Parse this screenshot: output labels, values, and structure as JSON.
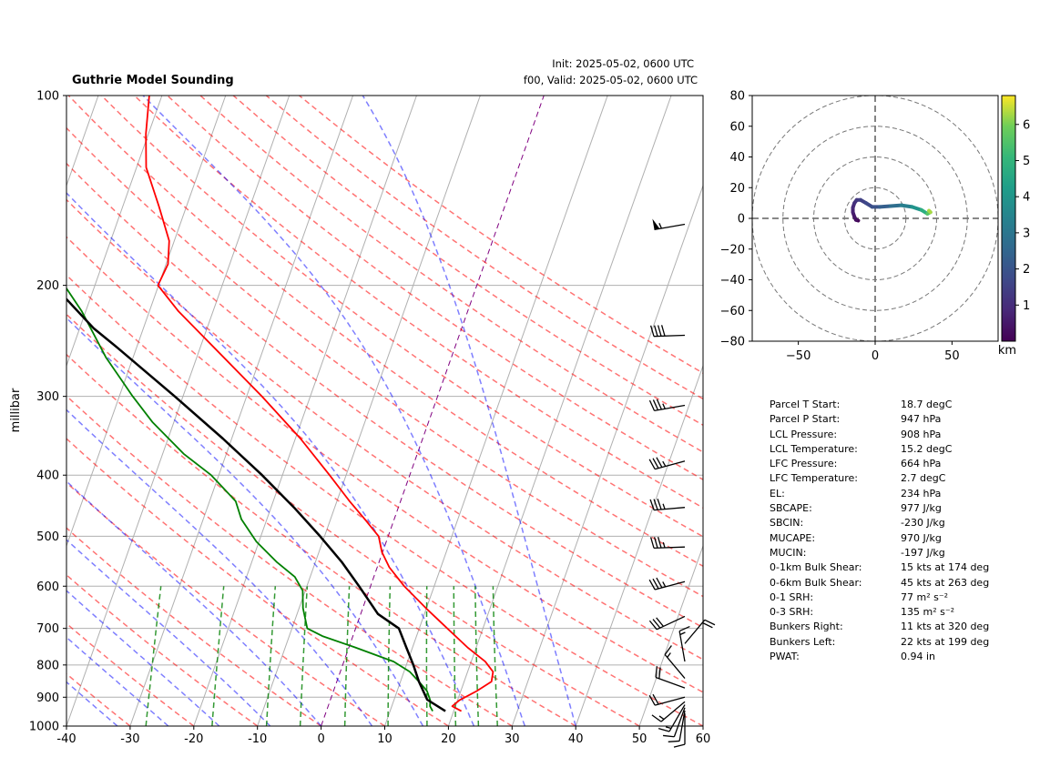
{
  "title": "Guthrie Model Sounding",
  "init_text": "Init: 2025-05-02, 0600 UTC",
  "valid_text": "f00, Valid: 2025-05-02, 0600 UTC",
  "colors": {
    "temperature": "#ff0000",
    "dewpoint": "#008000",
    "parcel": "#000000",
    "dry_adiabat": "#ff0000",
    "moist_adiabat": "#0000ff",
    "mixing_ratio": "#008000",
    "isobar": "#b0b0b0",
    "isotherm": "#b0b0b0",
    "zero_isotherm": "#800080"
  },
  "chart_data": [
    {
      "type": "line",
      "subtype": "skew-t log-p",
      "title": "Guthrie Model Sounding",
      "ylabel": "millibar",
      "xlabel": "",
      "x_ticks": [
        -40,
        -30,
        -20,
        -10,
        0,
        10,
        20,
        30,
        40,
        50,
        60
      ],
      "y_ticks": [
        100,
        200,
        300,
        400,
        500,
        600,
        700,
        800,
        900,
        1000
      ],
      "xlim": [
        -40,
        60
      ],
      "ylim": [
        1000,
        100
      ],
      "skew": 35,
      "grid": true,
      "series": [
        {
          "role": "temperature",
          "color": "#ff0000",
          "points": [
            [
              947,
              21.2
            ],
            [
              930,
              19.5
            ],
            [
              910,
              20.3
            ],
            [
              880,
              22.5
            ],
            [
              850,
              24.3
            ],
            [
              820,
              24.0
            ],
            [
              790,
              22.2
            ],
            [
              750,
              18.6
            ],
            [
              700,
              14.4
            ],
            [
              650,
              9.9
            ],
            [
              600,
              5.3
            ],
            [
              560,
              1.9
            ],
            [
              530,
              -0.1
            ],
            [
              500,
              -1.5
            ],
            [
              470,
              -4.6
            ],
            [
              440,
              -8.0
            ],
            [
              400,
              -12.6
            ],
            [
              350,
              -19.2
            ],
            [
              300,
              -27.6
            ],
            [
              260,
              -35.8
            ],
            [
              220,
              -45.4
            ],
            [
              200,
              -50.1
            ],
            [
              185,
              -49.7
            ],
            [
              170,
              -50.8
            ],
            [
              150,
              -54.3
            ],
            [
              130,
              -58.5
            ],
            [
              115,
              -60.4
            ],
            [
              100,
              -62.0
            ]
          ]
        },
        {
          "role": "dewpoint",
          "color": "#008000",
          "points": [
            [
              947,
              16.7
            ],
            [
              930,
              16.0
            ],
            [
              910,
              15.7
            ],
            [
              880,
              14.7
            ],
            [
              850,
              12.9
            ],
            [
              820,
              10.9
            ],
            [
              790,
              7.8
            ],
            [
              750,
              0.9
            ],
            [
              720,
              -4.8
            ],
            [
              700,
              -7.6
            ],
            [
              650,
              -9.4
            ],
            [
              610,
              -10.4
            ],
            [
              580,
              -12.4
            ],
            [
              550,
              -16.0
            ],
            [
              510,
              -20.4
            ],
            [
              470,
              -24.0
            ],
            [
              440,
              -25.9
            ],
            [
              400,
              -31.2
            ],
            [
              370,
              -36.7
            ],
            [
              330,
              -43.3
            ],
            [
              300,
              -47.9
            ],
            [
              260,
              -54.3
            ],
            [
              220,
              -60.6
            ],
            [
              200,
              -64.8
            ],
            [
              185,
              -66.0
            ],
            [
              170,
              -72.3
            ],
            [
              150,
              -82.0
            ],
            [
              140,
              -81.5
            ],
            [
              125,
              -80.5
            ],
            [
              110,
              -79.7
            ],
            [
              100,
              -79.7
            ]
          ]
        },
        {
          "role": "parcel",
          "color": "#000000",
          "points": [
            [
              947,
              18.7
            ],
            [
              908,
              15.2
            ],
            [
              850,
              12.9
            ],
            [
              800,
              11.1
            ],
            [
              750,
              9.0
            ],
            [
              700,
              6.8
            ],
            [
              664,
              2.7
            ],
            [
              600,
              -1.8
            ],
            [
              550,
              -5.8
            ],
            [
              500,
              -10.7
            ],
            [
              450,
              -16.4
            ],
            [
              400,
              -23.2
            ],
            [
              350,
              -31.4
            ],
            [
              300,
              -41.3
            ],
            [
              250,
              -53.3
            ],
            [
              234,
              -57.8
            ],
            [
              200,
              -66.5
            ],
            [
              170,
              -74.2
            ],
            [
              140,
              -82.8
            ],
            [
              120,
              -89.2
            ],
            [
              100,
              -96.2
            ]
          ]
        }
      ],
      "wind_barbs": [
        {
          "p": 955,
          "dir": 180,
          "spd": 10
        },
        {
          "p": 945,
          "dir": 190,
          "spd": 12
        },
        {
          "p": 935,
          "dir": 200,
          "spd": 14
        },
        {
          "p": 925,
          "dir": 210,
          "spd": 16
        },
        {
          "p": 915,
          "dir": 230,
          "spd": 18
        },
        {
          "p": 900,
          "dir": 255,
          "spd": 20
        },
        {
          "p": 870,
          "dir": 290,
          "spd": 20
        },
        {
          "p": 840,
          "dir": 320,
          "spd": 18
        },
        {
          "p": 790,
          "dir": 350,
          "spd": 15
        },
        {
          "p": 740,
          "dir": 40,
          "spd": 20
        },
        {
          "p": 670,
          "dir": 245,
          "spd": 30
        },
        {
          "p": 590,
          "dir": 255,
          "spd": 35
        },
        {
          "p": 520,
          "dir": 268,
          "spd": 35
        },
        {
          "p": 450,
          "dir": 265,
          "spd": 35
        },
        {
          "p": 380,
          "dir": 255,
          "spd": 35
        },
        {
          "p": 310,
          "dir": 260,
          "spd": 35
        },
        {
          "p": 240,
          "dir": 268,
          "spd": 40
        },
        {
          "p": 160,
          "dir": 260,
          "spd": 55
        }
      ]
    },
    {
      "type": "line",
      "subtype": "hodograph",
      "x_ticks": [
        -50,
        0,
        50
      ],
      "y_ticks": [
        -80,
        -60,
        -40,
        -20,
        0,
        20,
        40,
        60,
        80
      ],
      "xlim": [
        -80,
        80
      ],
      "ylim": [
        -80,
        80
      ],
      "rings": [
        20,
        40,
        60,
        80
      ],
      "colorbar": {
        "label": "km",
        "ticks": [
          1,
          2,
          3,
          4,
          5,
          6
        ],
        "range": [
          0,
          6.8
        ],
        "colormap": "viridis"
      },
      "points": [
        {
          "u": -11,
          "v": -1.5,
          "h": 0.0
        },
        {
          "u": -12.5,
          "v": -1,
          "h": 0.2
        },
        {
          "u": -13.5,
          "v": 1,
          "h": 0.4
        },
        {
          "u": -14.5,
          "v": 4,
          "h": 0.6
        },
        {
          "u": -14.5,
          "v": 7,
          "h": 0.8
        },
        {
          "u": -13.5,
          "v": 10,
          "h": 1.0
        },
        {
          "u": -12,
          "v": 12,
          "h": 1.2
        },
        {
          "u": -9.5,
          "v": 12,
          "h": 1.4
        },
        {
          "u": -6,
          "v": 10,
          "h": 1.6
        },
        {
          "u": -2,
          "v": 7.5,
          "h": 1.8
        },
        {
          "u": 3,
          "v": 7.5,
          "h": 2.1
        },
        {
          "u": 10,
          "v": 8,
          "h": 2.5
        },
        {
          "u": 17,
          "v": 8.5,
          "h": 3.0
        },
        {
          "u": 24,
          "v": 7.5,
          "h": 3.6
        },
        {
          "u": 30,
          "v": 5.5,
          "h": 4.3
        },
        {
          "u": 34,
          "v": 3,
          "h": 5.2
        },
        {
          "u": 36,
          "v": 4,
          "h": 6.0
        },
        {
          "u": 35,
          "v": 5,
          "h": 6.6
        }
      ]
    }
  ],
  "parameters": [
    {
      "label": "Parcel T Start:",
      "value": "18.7 degC"
    },
    {
      "label": "Parcel P Start:",
      "value": "947 hPa"
    },
    {
      "label": "LCL Pressure:",
      "value": "908 hPa"
    },
    {
      "label": "LCL Temperature:",
      "value": "15.2 degC"
    },
    {
      "label": "LFC Pressure:",
      "value": "664 hPa"
    },
    {
      "label": "LFC Temperature:",
      "value": "2.7 degC"
    },
    {
      "label": "EL:",
      "value": "234 hPa"
    },
    {
      "label": "SBCAPE:",
      "value": "977 J/kg"
    },
    {
      "label": "SBCIN:",
      "value": "-230 J/kg"
    },
    {
      "label": "MUCAPE:",
      "value": "970 J/kg"
    },
    {
      "label": "MUCIN:",
      "value": "-197 J/kg"
    },
    {
      "label": "0-1km Bulk Shear:",
      "value": "15 kts at 174 deg"
    },
    {
      "label": "0-6km Bulk Shear:",
      "value": "45 kts at 263 deg"
    },
    {
      "label": "0-1 SRH:",
      "value": "77 m² s⁻²"
    },
    {
      "label": "0-3 SRH:",
      "value": "135 m² s⁻²"
    },
    {
      "label": "Bunkers Right:",
      "value": "11 kts at 320 deg"
    },
    {
      "label": "Bunkers Left:",
      "value": "22 kts at 199 deg"
    },
    {
      "label": "PWAT:",
      "value": "0.94 in"
    }
  ]
}
